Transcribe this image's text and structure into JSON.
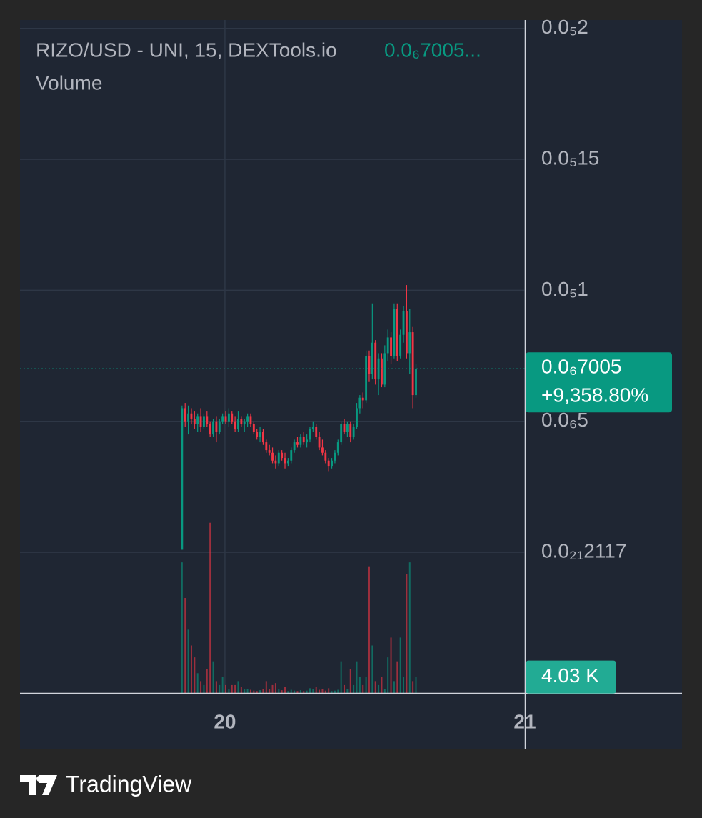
{
  "chart_data": {
    "type": "candlestick",
    "title": "RIZO/USD - UNI, 15, DEXTools.io",
    "legend_price": "0.0₆7005...",
    "volume_title": "Volume",
    "x": [
      19.857,
      19.8674,
      19.8778,
      19.8882,
      19.8986,
      19.909,
      19.9194,
      19.9298,
      19.9402,
      19.9506,
      19.961,
      19.9714,
      19.9818,
      19.9922,
      20.0026,
      20.013,
      20.0234,
      20.0338,
      20.0442,
      20.0546,
      20.065,
      20.0754,
      20.0858,
      20.0962,
      20.1066,
      20.117,
      20.1274,
      20.1378,
      20.1482,
      20.1586,
      20.169,
      20.1794,
      20.1898,
      20.2002,
      20.2106,
      20.221,
      20.2314,
      20.2418,
      20.2522,
      20.2626,
      20.273,
      20.2834,
      20.2938,
      20.3042,
      20.3146,
      20.325,
      20.3354,
      20.3458,
      20.3562,
      20.3666,
      20.377,
      20.3874,
      20.3978,
      20.4082,
      20.4186,
      20.429,
      20.4394,
      20.4498,
      20.4602,
      20.4706,
      20.481,
      20.4914,
      20.5018,
      20.5122,
      20.5226,
      20.533,
      20.5434,
      20.5538,
      20.5642,
      20.5746,
      20.585,
      20.5954,
      20.6058,
      20.6162,
      20.6266,
      20.637
    ],
    "open": [
      1e-08,
      5.5e-07,
      5e-07,
      5.3e-07,
      5.1e-07,
      4.9e-07,
      5.2e-07,
      4.8e-07,
      5.2e-07,
      4.9e-07,
      4.5e-07,
      5e-07,
      4.6e-07,
      5e-07,
      5.2e-07,
      5e-07,
      5.3e-07,
      5e-07,
      4.7e-07,
      5.1e-07,
      4.9e-07,
      5e-07,
      5.2e-07,
      4.9e-07,
      4.6e-07,
      4.4e-07,
      4.6e-07,
      4.2e-07,
      3.9e-07,
      3.8e-07,
      3.5e-07,
      3.4e-07,
      3.8e-07,
      3.6e-07,
      3.4e-07,
      3.5e-07,
      3.9e-07,
      4.2e-07,
      4.1e-07,
      4.4e-07,
      4.2e-07,
      4.3e-07,
      4.7e-07,
      4.8e-07,
      4.4e-07,
      4e-07,
      3.8e-07,
      3.5e-07,
      3.3e-07,
      3.5e-07,
      3.8e-07,
      4.2e-07,
      4.9e-07,
      4.6e-07,
      4.9e-07,
      4.4e-07,
      4.8e-07,
      5.5e-07,
      5.9e-07,
      5.8e-07,
      7.5e-07,
      6.8e-07,
      8e-07,
      6.6e-07,
      7.4e-07,
      6.4e-07,
      7.6e-07,
      8.2e-07,
      7.5e-07,
      9.3e-07,
      7.5e-07,
      8.3e-07,
      9.2e-07,
      7.6e-07,
      8.4e-07,
      6e-07
    ],
    "high": [
      5.6e-07,
      5.7e-07,
      5.6e-07,
      5.5e-07,
      5.4e-07,
      5.3e-07,
      5.5e-07,
      5.3e-07,
      5.4e-07,
      5e-07,
      5.1e-07,
      5.2e-07,
      5.1e-07,
      5.3e-07,
      5.4e-07,
      5.5e-07,
      5.4e-07,
      5.2e-07,
      5.4e-07,
      5.2e-07,
      5.1e-07,
      5.3e-07,
      5.3e-07,
      5e-07,
      4.7e-07,
      4.8e-07,
      4.7e-07,
      4.3e-07,
      4.1e-07,
      4e-07,
      3.7e-07,
      3.9e-07,
      3.9e-07,
      3.8e-07,
      3.6e-07,
      4e-07,
      4.3e-07,
      4.4e-07,
      4.5e-07,
      4.6e-07,
      4.5e-07,
      4.8e-07,
      5e-07,
      4.9e-07,
      4.6e-07,
      4.3e-07,
      3.9e-07,
      3.6e-07,
      3.6e-07,
      3.9e-07,
      4.3e-07,
      5e-07,
      5.1e-07,
      5e-07,
      5e-07,
      4.9e-07,
      5.7e-07,
      6e-07,
      6.1e-07,
      7.7e-07,
      7.7e-07,
      9.5e-07,
      8.1e-07,
      7.6e-07,
      7.6e-07,
      7.9e-07,
      8.5e-07,
      8.4e-07,
      9.5e-07,
      9.5e-07,
      8.5e-07,
      9.4e-07,
      1.02e-06,
      9.3e-07,
      8.6e-07,
      7.2e-07
    ],
    "low": [
      1e-08,
      4.8e-07,
      4.5e-07,
      4.9e-07,
      4.7e-07,
      4.6e-07,
      4.6e-07,
      4.7e-07,
      4.8e-07,
      4.4e-07,
      4.4e-07,
      4.2e-07,
      4.5e-07,
      4.9e-07,
      4.9e-07,
      4.8e-07,
      4.9e-07,
      4.6e-07,
      4.6e-07,
      4.8e-07,
      4.6e-07,
      4.8e-07,
      4.8e-07,
      4.5e-07,
      4.3e-07,
      4.2e-07,
      4.1e-07,
      3.8e-07,
      3.7e-07,
      3.4e-07,
      3.2e-07,
      3.3e-07,
      3.5e-07,
      3.2e-07,
      3.3e-07,
      3.4e-07,
      3.8e-07,
      4e-07,
      4e-07,
      4.1e-07,
      4e-07,
      4.2e-07,
      4.6e-07,
      4.3e-07,
      3.9e-07,
      3.7e-07,
      3.4e-07,
      3.1e-07,
      3.2e-07,
      3.4e-07,
      3.7e-07,
      4.1e-07,
      4.5e-07,
      4.4e-07,
      4.2e-07,
      4.3e-07,
      4.7e-07,
      5.3e-07,
      5.5e-07,
      5.7e-07,
      6.5e-07,
      6.6e-07,
      6.4e-07,
      6e-07,
      6.3e-07,
      6.3e-07,
      7.3e-07,
      7.2e-07,
      7.4e-07,
      7.3e-07,
      7.4e-07,
      8e-07,
      7.4e-07,
      6.8e-07,
      5.5e-07,
      5.9e-07
    ],
    "close": [
      5.5e-07,
      5e-07,
      5.3e-07,
      5.1e-07,
      4.9e-07,
      5.2e-07,
      4.8e-07,
      5.2e-07,
      4.9e-07,
      4.5e-07,
      5e-07,
      4.6e-07,
      5e-07,
      5.2e-07,
      5e-07,
      5.3e-07,
      5e-07,
      4.7e-07,
      5.1e-07,
      4.9e-07,
      5e-07,
      5.2e-07,
      4.9e-07,
      4.6e-07,
      4.4e-07,
      4.6e-07,
      4.2e-07,
      3.9e-07,
      3.8e-07,
      3.5e-07,
      3.4e-07,
      3.8e-07,
      3.6e-07,
      3.4e-07,
      3.5e-07,
      3.9e-07,
      4.2e-07,
      4.1e-07,
      4.4e-07,
      4.2e-07,
      4.3e-07,
      4.7e-07,
      4.8e-07,
      4.4e-07,
      4e-07,
      3.8e-07,
      3.5e-07,
      3.3e-07,
      3.5e-07,
      3.8e-07,
      4.2e-07,
      4.9e-07,
      4.6e-07,
      4.9e-07,
      4.4e-07,
      4.8e-07,
      5.5e-07,
      5.9e-07,
      5.8e-07,
      7.5e-07,
      6.8e-07,
      8e-07,
      6.6e-07,
      7.4e-07,
      6.4e-07,
      7.6e-07,
      8.2e-07,
      7.5e-07,
      9.3e-07,
      7.5e-07,
      8.3e-07,
      9.2e-07,
      7.6e-07,
      8.4e-07,
      6e-07,
      7.005e-07
    ],
    "volume": [
      33,
      24,
      16,
      12,
      9,
      5,
      3,
      2,
      6,
      43,
      8,
      3,
      2,
      4,
      2,
      1,
      2,
      2,
      3,
      1.5,
      1,
      1,
      0.8,
      0.6,
      0.5,
      0.7,
      1,
      3,
      1,
      2,
      2.5,
      1,
      0.7,
      1.5,
      0.5,
      0.8,
      0.6,
      0.5,
      0.7,
      0.5,
      0.6,
      1.2,
      1,
      1.5,
      0.8,
      1,
      0.6,
      1.2,
      0.5,
      0.6,
      0.8,
      8,
      2,
      1,
      6,
      2,
      8,
      4,
      2,
      4,
      32,
      12,
      3,
      2,
      4,
      1,
      9,
      14,
      3,
      8,
      14,
      4,
      30,
      33,
      3,
      4.03
    ],
    "up_color": "#089981",
    "down_color": "#f23645",
    "xlim": [
      19.317,
      21
    ],
    "xticks": [
      20,
      21
    ],
    "ylim": [
      -5.37e-07,
      2.032e-06
    ],
    "yticks": [
      {
        "value": 2e-06,
        "label": "0.0₅2"
      },
      {
        "value": 1.5e-06,
        "label": "0.0₅15"
      },
      {
        "value": 1e-06,
        "label": "0.0₅1"
      },
      {
        "value": 5e-07,
        "label": "0.0₆5"
      },
      {
        "value": 2.117e-22,
        "label": "0.0₂₁2117"
      }
    ],
    "y2lim": [
      0,
      170
    ],
    "grid": true,
    "last_price_label": "0.0₆7005",
    "change_label": "+9,358.80%",
    "volume_label": "4.03 K"
  },
  "footer": {
    "brand": "TradingView"
  }
}
